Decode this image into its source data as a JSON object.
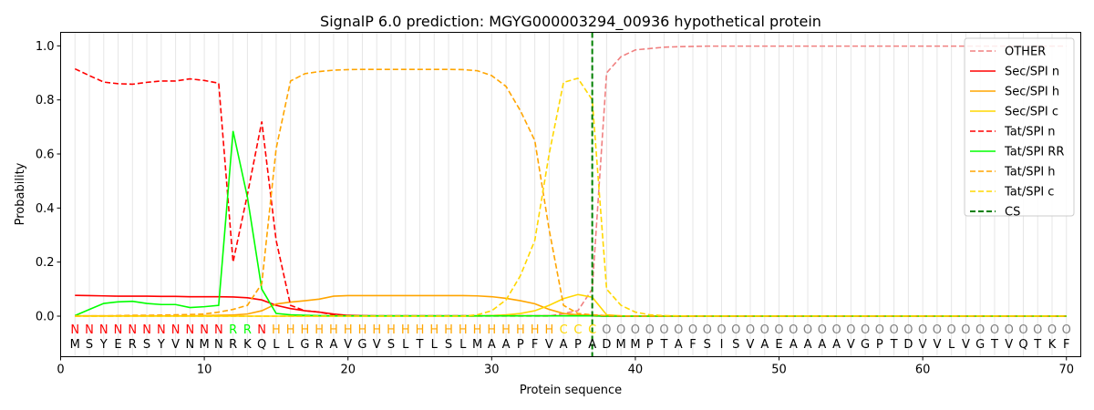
{
  "chart_data": {
    "type": "line",
    "title": "SignalP 6.0 prediction: MGYG000003294_00936 hypothetical protein",
    "xlabel": "Protein sequence",
    "ylabel": "Probability",
    "xlim": [
      0,
      71
    ],
    "ylim": [
      -0.15,
      1.05
    ],
    "x_ticks": [
      "0",
      "10",
      "20",
      "30",
      "40",
      "50",
      "60",
      "70"
    ],
    "y_ticks": [
      "0.0",
      "0.2",
      "0.4",
      "0.6",
      "0.8",
      "1.0"
    ],
    "grid": "vertical lines at each residue",
    "legend_position": "top-right",
    "sequence": [
      "M",
      "S",
      "Y",
      "E",
      "R",
      "S",
      "Y",
      "V",
      "N",
      "M",
      "N",
      "R",
      "K",
      "Q",
      "L",
      "L",
      "G",
      "R",
      "A",
      "V",
      "G",
      "V",
      "S",
      "L",
      "T",
      "L",
      "S",
      "L",
      "M",
      "A",
      "A",
      "P",
      "F",
      "V",
      "A",
      "P",
      "A",
      "D",
      "M",
      "M",
      "P",
      "T",
      "A",
      "F",
      "S",
      "I",
      "S",
      "V",
      "A",
      "E",
      "A",
      "A",
      "A",
      "A",
      "V",
      "G",
      "P",
      "T",
      "D",
      "V",
      "V",
      "L",
      "V",
      "G",
      "T",
      "V",
      "Q",
      "T",
      "K",
      "F"
    ],
    "region_labels": [
      "N",
      "N",
      "N",
      "N",
      "N",
      "N",
      "N",
      "N",
      "N",
      "N",
      "N",
      "R",
      "R",
      "N",
      "H",
      "H",
      "H",
      "H",
      "H",
      "H",
      "H",
      "H",
      "H",
      "H",
      "H",
      "H",
      "H",
      "H",
      "H",
      "H",
      "H",
      "H",
      "H",
      "H",
      "C",
      "C",
      "C",
      "O",
      "O",
      "O",
      "O",
      "O",
      "O",
      "O",
      "O",
      "O",
      "O",
      "O",
      "O",
      "O",
      "O",
      "O",
      "O",
      "O",
      "O",
      "O",
      "O",
      "O",
      "O",
      "O",
      "O",
      "O",
      "O",
      "O",
      "O",
      "O",
      "O",
      "O",
      "O",
      "O"
    ],
    "region_colors": {
      "N": "#ff0000",
      "R": "#00ff00",
      "H": "#ffa500",
      "C": "#ffd700",
      "O": "#808080"
    },
    "cleavage_site": 37,
    "series": [
      {
        "name": "OTHER",
        "color": "#f08080",
        "dash": true,
        "values": [
          0,
          0,
          0,
          0,
          0,
          0,
          0,
          0,
          0,
          0,
          0,
          0,
          0,
          0,
          0,
          0,
          0,
          0,
          0,
          0,
          0,
          0,
          0,
          0,
          0,
          0,
          0,
          0,
          0,
          0,
          0,
          0,
          0,
          0,
          0.01,
          0.02,
          0.1,
          0.9,
          0.96,
          0.985,
          0.99,
          0.995,
          0.997,
          0.998,
          0.999,
          0.999,
          0.999,
          0.999,
          0.999,
          0.999,
          0.999,
          0.999,
          0.999,
          0.999,
          0.999,
          0.999,
          0.999,
          0.999,
          0.999,
          0.999,
          0.999,
          0.999,
          0.999,
          0.999,
          0.999,
          0.999,
          0.999,
          0.999,
          0.999,
          0.999
        ]
      },
      {
        "name": "Sec/SPI n",
        "color": "#ff0000",
        "dash": false,
        "values": [
          0.077,
          0.076,
          0.075,
          0.074,
          0.074,
          0.074,
          0.073,
          0.073,
          0.072,
          0.072,
          0.072,
          0.071,
          0.068,
          0.06,
          0.04,
          0.028,
          0.02,
          0.015,
          0.008,
          0.003,
          0.002,
          0.001,
          0.001,
          0.001,
          0.001,
          0.001,
          0.001,
          0.001,
          0.001,
          0.001,
          0.001,
          0.001,
          0.001,
          0.001,
          0.001,
          0.001,
          0.001,
          0,
          0,
          0,
          0,
          0,
          0,
          0,
          0,
          0,
          0,
          0,
          0,
          0,
          0,
          0,
          0,
          0,
          0,
          0,
          0,
          0,
          0,
          0,
          0,
          0,
          0,
          0,
          0,
          0,
          0,
          0,
          0,
          0
        ]
      },
      {
        "name": "Sec/SPI h",
        "color": "#ffa500",
        "dash": false,
        "values": [
          0.001,
          0.001,
          0.001,
          0.001,
          0.001,
          0.001,
          0.001,
          0.001,
          0.001,
          0.002,
          0.003,
          0.004,
          0.008,
          0.02,
          0.045,
          0.052,
          0.057,
          0.063,
          0.074,
          0.076,
          0.076,
          0.076,
          0.076,
          0.076,
          0.076,
          0.076,
          0.076,
          0.076,
          0.075,
          0.072,
          0.066,
          0.057,
          0.046,
          0.025,
          0.01,
          0.005,
          0.003,
          0.001,
          0,
          0,
          0,
          0,
          0,
          0,
          0,
          0,
          0,
          0,
          0,
          0,
          0,
          0,
          0,
          0,
          0,
          0,
          0,
          0,
          0,
          0,
          0,
          0,
          0,
          0,
          0,
          0,
          0,
          0,
          0,
          0
        ]
      },
      {
        "name": "Sec/SPI c",
        "color": "#ffd700",
        "dash": false,
        "values": [
          0,
          0,
          0,
          0,
          0,
          0,
          0,
          0,
          0,
          0,
          0,
          0,
          0,
          0,
          0,
          0,
          0,
          0,
          0,
          0,
          0,
          0,
          0,
          0,
          0,
          0,
          0,
          0,
          0,
          0.002,
          0.005,
          0.01,
          0.02,
          0.04,
          0.065,
          0.08,
          0.07,
          0.005,
          0.001,
          0,
          0,
          0,
          0,
          0,
          0,
          0,
          0,
          0,
          0,
          0,
          0,
          0,
          0,
          0,
          0,
          0,
          0,
          0,
          0,
          0,
          0,
          0,
          0,
          0,
          0,
          0,
          0,
          0,
          0,
          0
        ]
      },
      {
        "name": "Tat/SPI n",
        "color": "#ff0000",
        "dash": true,
        "values": [
          0.915,
          0.89,
          0.866,
          0.86,
          0.858,
          0.865,
          0.87,
          0.87,
          0.878,
          0.872,
          0.862,
          0.2,
          0.45,
          0.72,
          0.28,
          0.04,
          0.02,
          0.015,
          0.005,
          0.002,
          0.001,
          0.001,
          0.001,
          0.001,
          0.001,
          0.001,
          0.001,
          0.001,
          0.001,
          0.001,
          0.001,
          0.001,
          0.001,
          0.001,
          0.001,
          0.001,
          0.001,
          0,
          0,
          0,
          0,
          0,
          0,
          0,
          0,
          0,
          0,
          0,
          0,
          0,
          0,
          0,
          0,
          0,
          0,
          0,
          0,
          0,
          0,
          0,
          0,
          0,
          0,
          0,
          0,
          0,
          0,
          0,
          0,
          0
        ]
      },
      {
        "name": "Tat/SPI RR",
        "color": "#00ff00",
        "dash": false,
        "values": [
          0.002,
          0.025,
          0.047,
          0.053,
          0.055,
          0.047,
          0.043,
          0.043,
          0.032,
          0.035,
          0.04,
          0.685,
          0.44,
          0.1,
          0.01,
          0.005,
          0.003,
          0.002,
          0.001,
          0.001,
          0.001,
          0.001,
          0.001,
          0.001,
          0.001,
          0.001,
          0.001,
          0.001,
          0.001,
          0.001,
          0.001,
          0.001,
          0.001,
          0.001,
          0.001,
          0.001,
          0.001,
          0,
          0,
          0,
          0,
          0,
          0,
          0,
          0,
          0,
          0,
          0,
          0,
          0,
          0,
          0,
          0,
          0,
          0,
          0,
          0,
          0,
          0,
          0,
          0,
          0,
          0,
          0,
          0,
          0,
          0,
          0,
          0,
          0
        ]
      },
      {
        "name": "Tat/SPI h",
        "color": "#ffa500",
        "dash": true,
        "values": [
          0.001,
          0.001,
          0.001,
          0.002,
          0.003,
          0.003,
          0.004,
          0.005,
          0.006,
          0.008,
          0.015,
          0.025,
          0.04,
          0.12,
          0.62,
          0.87,
          0.897,
          0.905,
          0.91,
          0.912,
          0.913,
          0.913,
          0.913,
          0.913,
          0.913,
          0.913,
          0.913,
          0.912,
          0.908,
          0.89,
          0.85,
          0.76,
          0.65,
          0.32,
          0.04,
          0.01,
          0.005,
          0.002,
          0.001,
          0,
          0,
          0,
          0,
          0,
          0,
          0,
          0,
          0,
          0,
          0,
          0,
          0,
          0,
          0,
          0,
          0,
          0,
          0,
          0,
          0,
          0,
          0,
          0,
          0,
          0,
          0,
          0,
          0,
          0,
          0
        ]
      },
      {
        "name": "Tat/SPI c",
        "color": "#ffd700",
        "dash": true,
        "values": [
          0,
          0,
          0,
          0,
          0,
          0,
          0,
          0,
          0,
          0,
          0,
          0,
          0,
          0,
          0,
          0,
          0,
          0,
          0,
          0,
          0,
          0,
          0,
          0,
          0,
          0,
          0,
          0,
          0.005,
          0.02,
          0.06,
          0.15,
          0.28,
          0.6,
          0.865,
          0.88,
          0.8,
          0.1,
          0.04,
          0.015,
          0.005,
          0.002,
          0.001,
          0,
          0,
          0,
          0,
          0,
          0,
          0,
          0,
          0,
          0,
          0,
          0,
          0,
          0,
          0,
          0,
          0,
          0,
          0,
          0,
          0,
          0,
          0,
          0,
          0,
          0,
          0
        ]
      },
      {
        "name": "CS",
        "color": "#008000",
        "dash": true,
        "vertical_at": 37
      }
    ]
  }
}
